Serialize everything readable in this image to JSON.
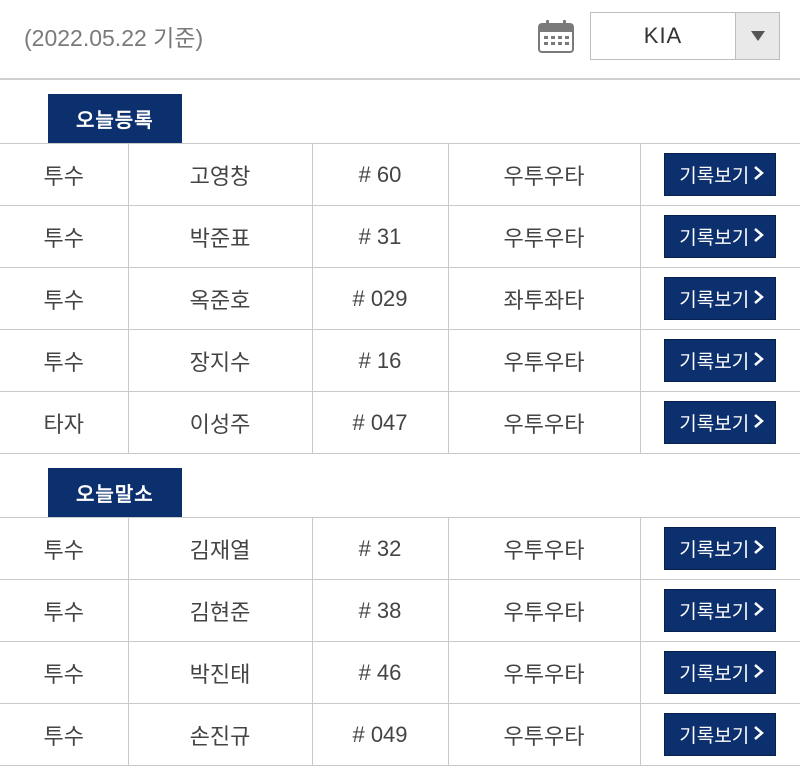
{
  "header": {
    "date_label": "(2022.05.22 기준)",
    "team_select": "KIA"
  },
  "colors": {
    "primary": "#0c2f6e",
    "border": "#c9c9c9",
    "header_border": "#d0d0d0",
    "muted_text": "#7a7a7a"
  },
  "sections": [
    {
      "title": "오늘등록",
      "rows": [
        {
          "pos": "투수",
          "name": "고영창",
          "num": "# 60",
          "bat": "우투우타",
          "btn": "기록보기"
        },
        {
          "pos": "투수",
          "name": "박준표",
          "num": "# 31",
          "bat": "우투우타",
          "btn": "기록보기"
        },
        {
          "pos": "투수",
          "name": "옥준호",
          "num": "# 029",
          "bat": "좌투좌타",
          "btn": "기록보기"
        },
        {
          "pos": "투수",
          "name": "장지수",
          "num": "# 16",
          "bat": "우투우타",
          "btn": "기록보기"
        },
        {
          "pos": "타자",
          "name": "이성주",
          "num": "# 047",
          "bat": "우투우타",
          "btn": "기록보기"
        }
      ]
    },
    {
      "title": "오늘말소",
      "rows": [
        {
          "pos": "투수",
          "name": "김재열",
          "num": "# 32",
          "bat": "우투우타",
          "btn": "기록보기"
        },
        {
          "pos": "투수",
          "name": "김현준",
          "num": "# 38",
          "bat": "우투우타",
          "btn": "기록보기"
        },
        {
          "pos": "투수",
          "name": "박진태",
          "num": "# 46",
          "bat": "우투우타",
          "btn": "기록보기"
        },
        {
          "pos": "투수",
          "name": "손진규",
          "num": "# 049",
          "bat": "우투우타",
          "btn": "기록보기"
        }
      ]
    }
  ]
}
